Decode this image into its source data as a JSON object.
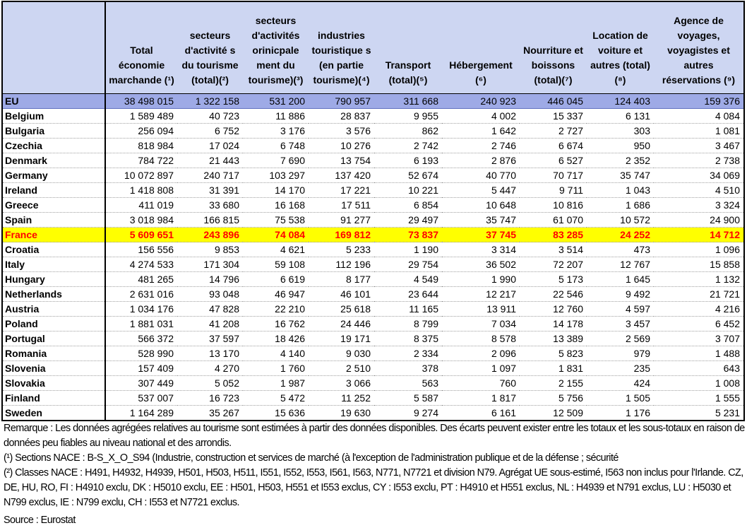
{
  "table": {
    "corner": "",
    "columns": [
      "Total économie marchande (¹)",
      "secteurs d'activité s du tourisme (total)(²)",
      "secteurs d'activités orinicpale ment du tourisme)(³)",
      "industries touristique s (en partie tourisme)(⁴)",
      "Transport (total)(⁵)",
      "Hébergement (⁶)",
      "Nourriture et boissons (total)(⁷)",
      "Location de voiture et autres (total)(⁸)",
      "Agence de voyages, voyagistes et autres réservations (⁹)"
    ],
    "rows": [
      {
        "country": "EU",
        "values": [
          "38 498 015",
          "1 322 158",
          "531 200",
          "790 957",
          "311 668",
          "240 923",
          "446 045",
          "124 403",
          "159 376"
        ]
      },
      {
        "country": "Belgium",
        "values": [
          "1 589 489",
          "40 723",
          "11 886",
          "28 837",
          "9 955",
          "4 002",
          "15 337",
          "6 131",
          "4 084"
        ]
      },
      {
        "country": "Bulgaria",
        "values": [
          "256 094",
          "6 752",
          "3 176",
          "3 576",
          "862",
          "1 642",
          "2 727",
          "303",
          "1 081"
        ]
      },
      {
        "country": "Czechia",
        "values": [
          "818 984",
          "17 024",
          "6 748",
          "10 276",
          "2 742",
          "2 746",
          "6 674",
          "950",
          "3 467"
        ]
      },
      {
        "country": "Denmark",
        "values": [
          "784 722",
          "21 443",
          "7 690",
          "13 754",
          "6 193",
          "2 876",
          "6 527",
          "2 352",
          "2 738"
        ]
      },
      {
        "country": "Germany",
        "values": [
          "10 072 897",
          "240 717",
          "103 297",
          "137 420",
          "52 674",
          "40 770",
          "70 717",
          "35 747",
          "34 069"
        ]
      },
      {
        "country": "Ireland",
        "values": [
          "1 418 808",
          "31 391",
          "14 170",
          "17 221",
          "10 221",
          "5 447",
          "9 711",
          "1 043",
          "4 510"
        ]
      },
      {
        "country": "Greece",
        "values": [
          "411 019",
          "33 680",
          "16 168",
          "17 511",
          "6 854",
          "10 648",
          "10 816",
          "1 686",
          "3 324"
        ]
      },
      {
        "country": "Spain",
        "values": [
          "3 018 984",
          "166 815",
          "75 538",
          "91 277",
          "29 497",
          "35 747",
          "61 070",
          "10 572",
          "24 900"
        ]
      },
      {
        "country": "France",
        "values": [
          "5 609 651",
          "243 896",
          "74 084",
          "169 812",
          "73 837",
          "37 745",
          "83 285",
          "24 252",
          "14 712"
        ]
      },
      {
        "country": "Croatia",
        "values": [
          "156 556",
          "9 853",
          "4 621",
          "5 233",
          "1 190",
          "3 314",
          "3 514",
          "473",
          "1 096"
        ]
      },
      {
        "country": "Italy",
        "values": [
          "4 274 533",
          "171 304",
          "59 108",
          "112 196",
          "29 754",
          "36 502",
          "72 207",
          "12 767",
          "15 858"
        ]
      },
      {
        "country": "Hungary",
        "values": [
          "481 265",
          "14 796",
          "6 619",
          "8 177",
          "4 549",
          "1 990",
          "5 173",
          "1 645",
          "1 132"
        ]
      },
      {
        "country": "Netherlands",
        "values": [
          "2 631 016",
          "93 048",
          "46 947",
          "46 101",
          "23 644",
          "12 217",
          "22 546",
          "9 492",
          "21 721"
        ]
      },
      {
        "country": "Austria",
        "values": [
          "1 034 176",
          "47 828",
          "22 210",
          "25 618",
          "11 165",
          "13 911",
          "12 760",
          "4 597",
          "4 216"
        ]
      },
      {
        "country": "Poland",
        "values": [
          "1 881 031",
          "41 208",
          "16 762",
          "24 446",
          "8 799",
          "7 034",
          "14 178",
          "3 457",
          "6 452"
        ]
      },
      {
        "country": "Portugal",
        "values": [
          "566 372",
          "37 597",
          "18 426",
          "19 171",
          "8 375",
          "8 578",
          "13 389",
          "2 569",
          "3 707"
        ]
      },
      {
        "country": "Romania",
        "values": [
          "528 990",
          "13 170",
          "4 140",
          "9 030",
          "2 334",
          "2 096",
          "5 823",
          "979",
          "1 488"
        ]
      },
      {
        "country": "Slovenia",
        "values": [
          "157 409",
          "4 270",
          "1 760",
          "2 510",
          "378",
          "1 097",
          "1 831",
          "235",
          "643"
        ]
      },
      {
        "country": "Slovakia",
        "values": [
          "307 449",
          "5 052",
          "1 987",
          "3 066",
          "563",
          "760",
          "2 155",
          "424",
          "1 008"
        ]
      },
      {
        "country": "Finland",
        "values": [
          "537 007",
          "16 723",
          "5 472",
          "11 252",
          "5 587",
          "1 817",
          "5 756",
          "1 505",
          "1 555"
        ]
      },
      {
        "country": "Sweden",
        "values": [
          "1 164 289",
          "35 267",
          "15 636",
          "19 630",
          "9 274",
          "6 161",
          "12 509",
          "1 176",
          "5 231"
        ]
      }
    ],
    "highlight_country": "France",
    "colors": {
      "header_bg": "#cdd6f2",
      "eu_bg": "#9eaae6",
      "highlight_bg": "#ffff00",
      "highlight_text": "#ff0000"
    }
  },
  "notes": {
    "remark": "Remarque : Les données agrégées relatives au tourisme sont estimées à partir des données disponibles. Des écarts peuvent exister entre les totaux et les sous-totaux en raison de données peu fiables au niveau national et des arrondis.",
    "note1": "(¹) Sections NACE : B-S_X_O_S94 (Industrie, construction et services de marché (à l'exception de l'administration publique et de la défense ; sécurité",
    "note2": "(²) Classes NACE : H491, H4932, H4939, H501, H503, H511, I551, I552, I553, I561, I563, N771, N7721 et division N79. Agrégat UE sous-estimé, I563 non inclus pour l'Irlande. CZ, DE, HU, RO, FI : H4910 exclu, DK : H5010 exclu, EE : H501, H503, H551 et I553 exclus, CY : I553 exclu, PT : H4910 et H551 exclus, NL : H4939 et N791 exclus, LU : H5030 et N799 exclus, IE : N799 exclu, CH : I553 et N7721 exclus.",
    "source": "Source : Eurostat"
  }
}
